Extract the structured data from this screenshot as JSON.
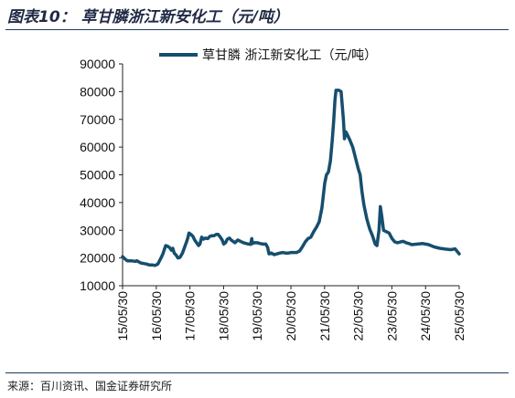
{
  "header": {
    "title": "图表10：  草甘膦浙江新安化工（元/吨）"
  },
  "footer": {
    "source": "来源：百川资讯、国金证券研究所"
  },
  "chart_data": {
    "type": "line",
    "ylim": [
      10000,
      90000
    ],
    "yticks": [
      10000,
      20000,
      30000,
      40000,
      50000,
      60000,
      70000,
      80000,
      90000
    ],
    "xlim": [
      "2015-05-30",
      "2025-05-30"
    ],
    "xticks": [
      "15/05/30",
      "16/05/30",
      "17/05/30",
      "18/05/30",
      "19/05/30",
      "20/05/30",
      "21/05/30",
      "22/05/30",
      "23/05/30",
      "24/05/30",
      "25/05/30"
    ],
    "legend": "top-center",
    "grid": false,
    "colors": {
      "line": "#164e6e"
    },
    "series": [
      {
        "name": "草甘膦 浙江新安化工（元/吨）",
        "points": [
          [
            "2015-05-30",
            20500
          ],
          [
            "2015-06-20",
            19800
          ],
          [
            "2015-07-20",
            19000
          ],
          [
            "2015-09-01",
            19000
          ],
          [
            "2015-10-15",
            18800
          ],
          [
            "2015-11-01",
            19000
          ],
          [
            "2015-12-15",
            18200
          ],
          [
            "2016-01-15",
            18000
          ],
          [
            "2016-02-15",
            17800
          ],
          [
            "2016-03-15",
            17500
          ],
          [
            "2016-04-15",
            17500
          ],
          [
            "2016-05-15",
            17300
          ],
          [
            "2016-06-15",
            17800
          ],
          [
            "2016-07-01",
            18800
          ],
          [
            "2016-07-20",
            20000
          ],
          [
            "2016-08-10",
            21500
          ],
          [
            "2016-08-25",
            23000
          ],
          [
            "2016-09-10",
            24500
          ],
          [
            "2016-10-01",
            24200
          ],
          [
            "2016-10-20",
            23800
          ],
          [
            "2016-11-10",
            22800
          ],
          [
            "2016-11-25",
            23500
          ],
          [
            "2016-12-10",
            21800
          ],
          [
            "2017-01-01",
            21000
          ],
          [
            "2017-01-20",
            20000
          ],
          [
            "2017-02-10",
            20200
          ],
          [
            "2017-03-10",
            21800
          ],
          [
            "2017-04-01",
            23800
          ],
          [
            "2017-04-20",
            25500
          ],
          [
            "2017-05-05",
            27000
          ],
          [
            "2017-05-20",
            29000
          ],
          [
            "2017-06-10",
            28500
          ],
          [
            "2017-07-01",
            27800
          ],
          [
            "2017-07-20",
            26500
          ],
          [
            "2017-08-10",
            25500
          ],
          [
            "2017-09-01",
            24500
          ],
          [
            "2017-09-15",
            25000
          ],
          [
            "2017-10-05",
            27500
          ],
          [
            "2017-10-25",
            26800
          ],
          [
            "2017-11-15",
            27200
          ],
          [
            "2017-12-10",
            27000
          ],
          [
            "2018-01-01",
            27800
          ],
          [
            "2018-01-20",
            28000
          ],
          [
            "2018-02-15",
            28000
          ],
          [
            "2018-03-10",
            28500
          ],
          [
            "2018-04-01",
            28500
          ],
          [
            "2018-04-25",
            27500
          ],
          [
            "2018-05-15",
            26500
          ],
          [
            "2018-06-01",
            25000
          ],
          [
            "2018-06-20",
            25500
          ],
          [
            "2018-07-10",
            26800
          ],
          [
            "2018-08-01",
            27200
          ],
          [
            "2018-08-20",
            26500
          ],
          [
            "2018-09-10",
            26000
          ],
          [
            "2018-10-01",
            25500
          ],
          [
            "2018-11-01",
            26500
          ],
          [
            "2018-12-01",
            26000
          ],
          [
            "2019-01-01",
            25500
          ],
          [
            "2019-02-01",
            25200
          ],
          [
            "2019-03-01",
            25000
          ],
          [
            "2019-03-20",
            24900
          ],
          [
            "2019-04-01",
            27000
          ],
          [
            "2019-04-10",
            25200
          ],
          [
            "2019-05-01",
            25500
          ],
          [
            "2019-06-01",
            25500
          ],
          [
            "2019-07-01",
            25200
          ],
          [
            "2019-08-01",
            25000
          ],
          [
            "2019-09-01",
            25000
          ],
          [
            "2019-09-20",
            23800
          ],
          [
            "2019-10-05",
            21500
          ],
          [
            "2019-11-01",
            21800
          ],
          [
            "2019-12-01",
            21200
          ],
          [
            "2020-01-01",
            21500
          ],
          [
            "2020-02-01",
            21800
          ],
          [
            "2020-03-01",
            22000
          ],
          [
            "2020-04-01",
            21800
          ],
          [
            "2020-05-01",
            21800
          ],
          [
            "2020-06-01",
            22000
          ],
          [
            "2020-07-01",
            22000
          ],
          [
            "2020-08-01",
            22000
          ],
          [
            "2020-09-01",
            22500
          ],
          [
            "2020-10-01",
            24000
          ],
          [
            "2020-11-01",
            25800
          ],
          [
            "2020-12-01",
            27000
          ],
          [
            "2021-01-01",
            27500
          ],
          [
            "2021-02-01",
            29500
          ],
          [
            "2021-03-01",
            31000
          ],
          [
            "2021-04-01",
            33000
          ],
          [
            "2021-05-01",
            38000
          ],
          [
            "2021-06-01",
            47000
          ],
          [
            "2021-06-20",
            50000
          ],
          [
            "2021-07-10",
            51000
          ],
          [
            "2021-08-01",
            55000
          ],
          [
            "2021-08-20",
            62000
          ],
          [
            "2021-09-05",
            69000
          ],
          [
            "2021-09-20",
            77000
          ],
          [
            "2021-10-01",
            80500
          ],
          [
            "2021-11-01",
            80500
          ],
          [
            "2021-11-25",
            80000
          ],
          [
            "2021-12-05",
            76000
          ],
          [
            "2021-12-20",
            70000
          ],
          [
            "2022-01-01",
            63000
          ],
          [
            "2022-01-15",
            65500
          ],
          [
            "2022-02-01",
            64500
          ],
          [
            "2022-03-01",
            62500
          ],
          [
            "2022-04-01",
            60000
          ],
          [
            "2022-05-01",
            56000
          ],
          [
            "2022-06-01",
            52000
          ],
          [
            "2022-06-20",
            50000
          ],
          [
            "2022-07-10",
            44000
          ],
          [
            "2022-08-01",
            39000
          ],
          [
            "2022-09-01",
            34000
          ],
          [
            "2022-10-01",
            30500
          ],
          [
            "2022-11-01",
            28000
          ],
          [
            "2022-12-01",
            25000
          ],
          [
            "2022-12-20",
            24500
          ],
          [
            "2023-01-10",
            30000
          ],
          [
            "2023-01-25",
            38500
          ],
          [
            "2023-02-10",
            35000
          ],
          [
            "2023-03-01",
            30000
          ],
          [
            "2023-04-01",
            29500
          ],
          [
            "2023-05-01",
            29000
          ],
          [
            "2023-06-01",
            27000
          ],
          [
            "2023-07-01",
            25800
          ],
          [
            "2023-08-01",
            25500
          ],
          [
            "2023-09-01",
            25800
          ],
          [
            "2023-10-01",
            26000
          ],
          [
            "2023-11-01",
            25500
          ],
          [
            "2023-12-01",
            25200
          ],
          [
            "2024-01-01",
            24800
          ],
          [
            "2024-03-01",
            25000
          ],
          [
            "2024-05-01",
            25200
          ],
          [
            "2024-07-01",
            24800
          ],
          [
            "2024-09-01",
            24000
          ],
          [
            "2024-11-01",
            23500
          ],
          [
            "2025-01-01",
            23200
          ],
          [
            "2025-03-01",
            23000
          ],
          [
            "2025-04-15",
            23300
          ],
          [
            "2025-05-30",
            21500
          ]
        ]
      }
    ]
  }
}
